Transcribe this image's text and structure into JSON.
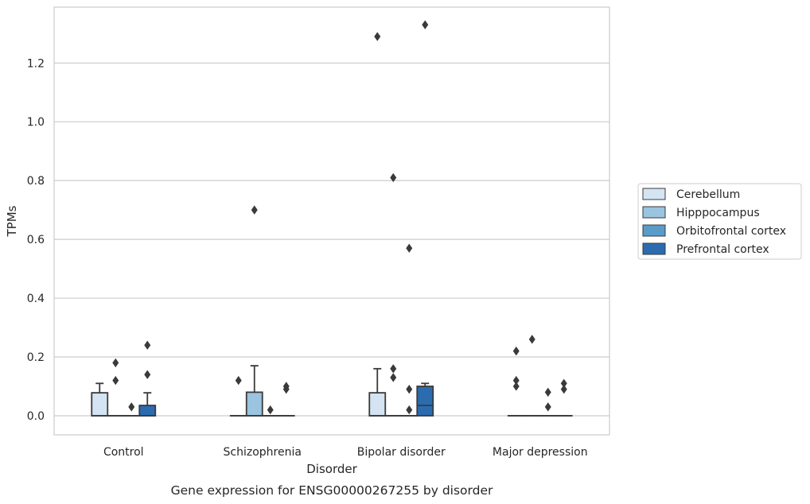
{
  "chart_data": {
    "type": "box",
    "title": "",
    "caption": "Gene expression for ENSG00000267255 by disorder",
    "xlabel": "Disorder",
    "ylabel": "TPMs",
    "ylim": [
      -0.065,
      1.39
    ],
    "yticks": [
      0.0,
      0.2,
      0.4,
      0.6,
      0.8,
      1.0,
      1.2
    ],
    "grid": "horizontal",
    "legend_position": "right",
    "categories": [
      "Control",
      "Schizophrenia",
      "Bipolar disorder",
      "Major depression"
    ],
    "series": [
      {
        "name": "Cerebellum",
        "color": "#d4e4f2",
        "boxes": [
          {
            "q1": 0.0,
            "median": 0.0,
            "q3": 0.078,
            "whisker_low": 0.0,
            "whisker_high": 0.11,
            "outliers": []
          },
          {
            "q1": 0.0,
            "median": 0.0,
            "q3": 0.0,
            "whisker_low": 0.0,
            "whisker_high": 0.0,
            "outliers": [
              0.12
            ]
          },
          {
            "q1": 0.0,
            "median": 0.0,
            "q3": 0.078,
            "whisker_low": 0.0,
            "whisker_high": 0.16,
            "outliers": [
              1.29
            ]
          },
          {
            "q1": 0.0,
            "median": 0.0,
            "q3": 0.0,
            "whisker_low": 0.0,
            "whisker_high": 0.0,
            "outliers": [
              0.22,
              0.12,
              0.1
            ]
          }
        ]
      },
      {
        "name": "Hipppocampus",
        "color": "#9ac4e0",
        "boxes": [
          {
            "q1": 0.0,
            "median": 0.0,
            "q3": 0.0,
            "whisker_low": 0.0,
            "whisker_high": 0.0,
            "outliers": [
              0.18,
              0.12
            ]
          },
          {
            "q1": 0.0,
            "median": 0.0,
            "q3": 0.08,
            "whisker_low": 0.0,
            "whisker_high": 0.17,
            "outliers": [
              0.7
            ]
          },
          {
            "q1": 0.0,
            "median": 0.0,
            "q3": 0.0,
            "whisker_low": 0.0,
            "whisker_high": 0.0,
            "outliers": [
              0.81,
              0.16,
              0.13
            ]
          },
          {
            "q1": 0.0,
            "median": 0.0,
            "q3": 0.0,
            "whisker_low": 0.0,
            "whisker_high": 0.0,
            "outliers": [
              0.26
            ]
          }
        ]
      },
      {
        "name": "Orbitofrontal cortex",
        "color": "#5a9cc9",
        "boxes": [
          {
            "q1": 0.0,
            "median": 0.0,
            "q3": 0.0,
            "whisker_low": 0.0,
            "whisker_high": 0.0,
            "outliers": [
              0.03
            ]
          },
          {
            "q1": 0.0,
            "median": 0.0,
            "q3": 0.0,
            "whisker_low": 0.0,
            "whisker_high": 0.0,
            "outliers": [
              0.02
            ]
          },
          {
            "q1": 0.0,
            "median": 0.0,
            "q3": 0.0,
            "whisker_low": 0.0,
            "whisker_high": 0.0,
            "outliers": [
              0.57,
              0.09,
              0.02
            ]
          },
          {
            "q1": 0.0,
            "median": 0.0,
            "q3": 0.0,
            "whisker_low": 0.0,
            "whisker_high": 0.0,
            "outliers": [
              0.08,
              0.03
            ]
          }
        ]
      },
      {
        "name": "Prefrontal cortex",
        "color": "#2b6cb0",
        "boxes": [
          {
            "q1": 0.0,
            "median": 0.0,
            "q3": 0.035,
            "whisker_low": 0.0,
            "whisker_high": 0.078,
            "outliers": [
              0.24,
              0.14
            ]
          },
          {
            "q1": 0.0,
            "median": 0.0,
            "q3": 0.0,
            "whisker_low": 0.0,
            "whisker_high": 0.0,
            "outliers": [
              0.1,
              0.09
            ]
          },
          {
            "q1": 0.0,
            "median": 0.035,
            "q3": 0.1,
            "whisker_low": 0.0,
            "whisker_high": 0.11,
            "outliers": [
              1.33
            ]
          },
          {
            "q1": 0.0,
            "median": 0.0,
            "q3": 0.0,
            "whisker_low": 0.0,
            "whisker_high": 0.0,
            "outliers": [
              0.11,
              0.09
            ]
          }
        ]
      }
    ]
  }
}
